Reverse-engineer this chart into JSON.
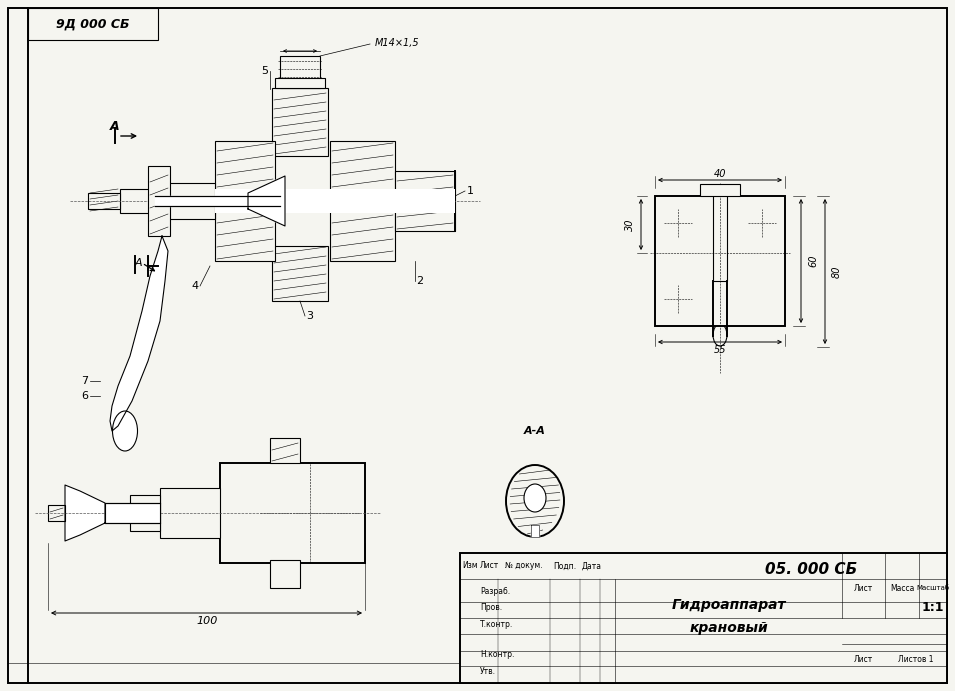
{
  "bg": "#f5f5f0",
  "stamp_text": "9Д 000 СБ",
  "title_number": "05. 000 СБ",
  "title_name1": "Гидроаппарат",
  "title_name2": "крановый",
  "scale": "1:1",
  "thread": "M14×1,5",
  "dim_40": "40",
  "dim_30": "30",
  "dim_60": "60",
  "dim_80": "80",
  "dim_55": "55",
  "dim_100": "100",
  "label_A": "A",
  "label_AA": "А-А",
  "labels": [
    "1",
    "2",
    "3",
    "4",
    "5",
    "6",
    "7"
  ],
  "row_labels": [
    "Разраб.",
    "Пров.",
    "Т.контр.",
    "Н.контр.",
    "Утв."
  ],
  "col_labels": [
    "Изм",
    "Лист",
    "№ докум.",
    "Подп.",
    "Дата"
  ],
  "right_cols": [
    "Лист",
    "Масса",
    "Масштаб"
  ]
}
